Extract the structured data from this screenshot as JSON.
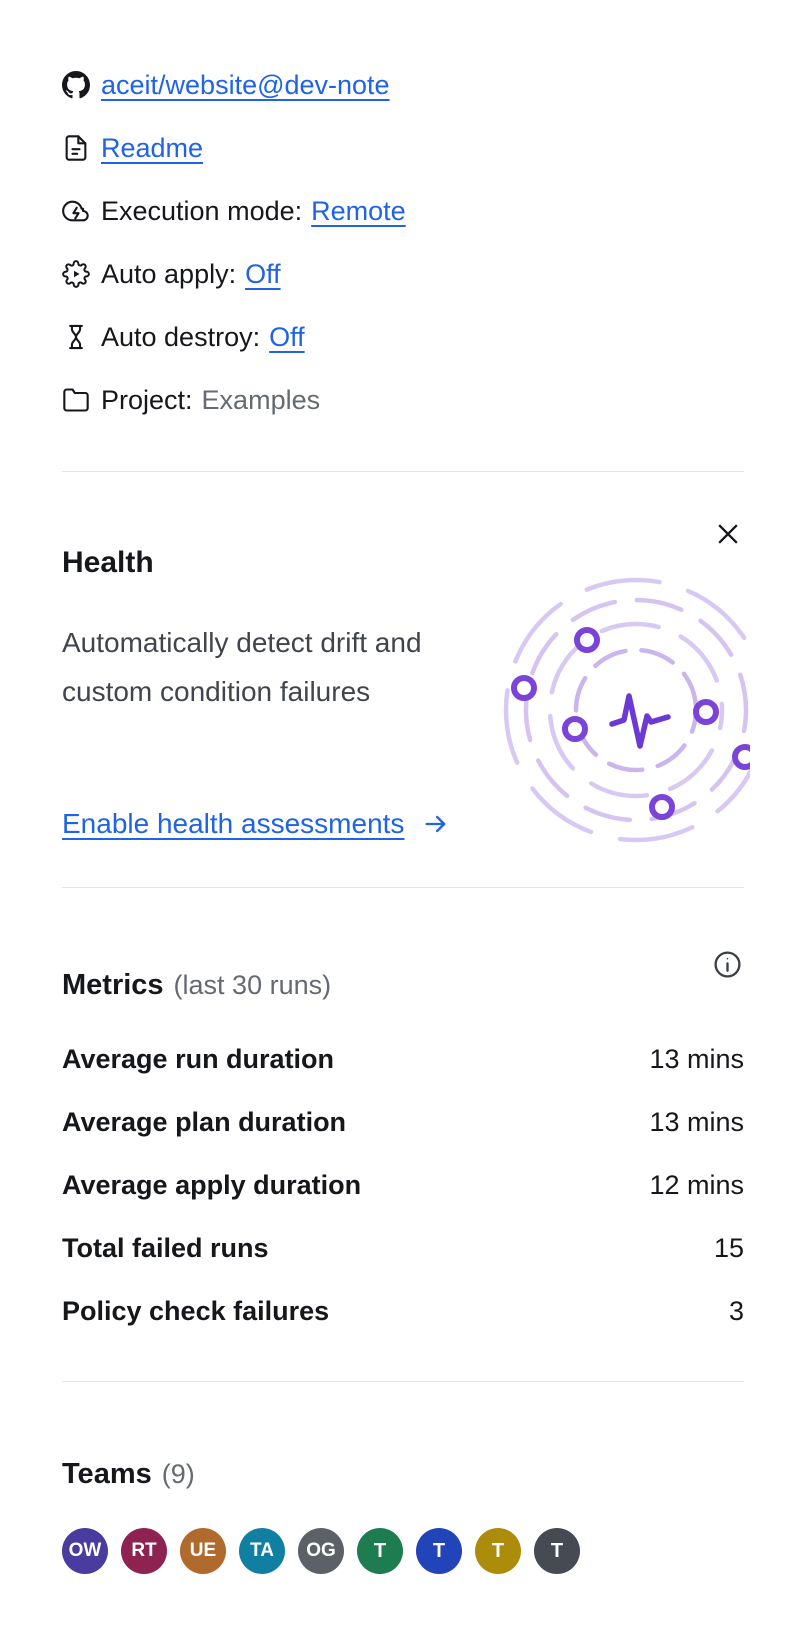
{
  "meta": {
    "items": [
      {
        "icon": "github-icon",
        "name": "repo-link-row",
        "label": "",
        "link": "aceit/website@dev-note",
        "value": ""
      },
      {
        "icon": "file-text-icon",
        "name": "readme-row",
        "label": "",
        "link": "Readme",
        "value": ""
      },
      {
        "icon": "cloud-lightning-icon",
        "name": "execution-mode-row",
        "label": "Execution mode:",
        "link": "Remote",
        "value": ""
      },
      {
        "icon": "auto-apply-gear-icon",
        "name": "auto-apply-row",
        "label": "Auto apply:",
        "link": "Off",
        "value": ""
      },
      {
        "icon": "hourglass-icon",
        "name": "auto-destroy-row",
        "label": "Auto destroy:",
        "link": "Off",
        "value": ""
      },
      {
        "icon": "folder-icon",
        "name": "project-row",
        "label": "Project:",
        "link": "",
        "value": "Examples"
      }
    ]
  },
  "health": {
    "title": "Health",
    "description": "Automatically detect drift and custom condition failures",
    "cta_label": "Enable health assessments"
  },
  "metrics": {
    "title": "Metrics",
    "subtitle": "(last 30 runs)",
    "rows": [
      {
        "label": "Average run duration",
        "value": "13 mins"
      },
      {
        "label": "Average plan duration",
        "value": "13 mins"
      },
      {
        "label": "Average apply duration",
        "value": "12 mins"
      },
      {
        "label": "Total failed runs",
        "value": "15"
      },
      {
        "label": "Policy check failures",
        "value": "3"
      }
    ]
  },
  "teams": {
    "title": "Teams",
    "count": "(9)",
    "avatars": [
      {
        "initials": "OW",
        "color": "#4a3c9e"
      },
      {
        "initials": "RT",
        "color": "#8e2351"
      },
      {
        "initials": "UE",
        "color": "#b16a2d"
      },
      {
        "initials": "TA",
        "color": "#117fa2"
      },
      {
        "initials": "OG",
        "color": "#5c6067"
      },
      {
        "initials": "T",
        "color": "#1d7c50"
      },
      {
        "initials": "T",
        "color": "#2145b8"
      },
      {
        "initials": "T",
        "color": "#ad8b0b"
      },
      {
        "initials": "T",
        "color": "#464a52"
      }
    ]
  },
  "colors": {
    "link_blue": "#1f63e6",
    "text_strong": "#15171c",
    "text_muted": "#656a72",
    "divider": "#e2e4e8",
    "illustration_lavender": "#d8c9f4",
    "illustration_purple": "#7a44d9",
    "illustration_pulse": "#6b39d3"
  }
}
